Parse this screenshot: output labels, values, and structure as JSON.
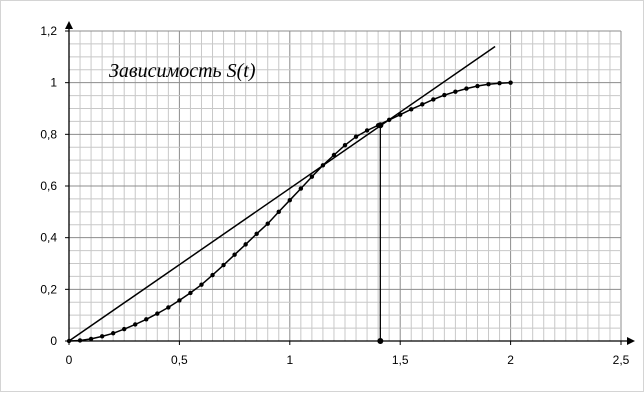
{
  "chart_data": {
    "type": "line",
    "title": "Зависимость S(t)",
    "xlabel": "",
    "ylabel": "",
    "xlim": [
      0,
      2.5
    ],
    "ylim": [
      0,
      1.2
    ],
    "grid": true,
    "x_ticks": [
      0,
      0.5,
      1,
      1.5,
      2,
      2.5
    ],
    "x_tick_labels": [
      "0",
      "0,5",
      "1",
      "1,5",
      "2",
      "2,5"
    ],
    "y_ticks": [
      0,
      0.2,
      0.4,
      0.6,
      0.8,
      1,
      1.2
    ],
    "y_tick_labels": [
      "0",
      "0,2",
      "0,4",
      "0,6",
      "0,8",
      "1",
      "1,2"
    ],
    "series": [
      {
        "type": "line-with-markers",
        "color": "#000000",
        "x": [
          0,
          0.05,
          0.1,
          0.15,
          0.2,
          0.25,
          0.3,
          0.35,
          0.4,
          0.45,
          0.5,
          0.55,
          0.6,
          0.65,
          0.7,
          0.75,
          0.8,
          0.85,
          0.9,
          0.95,
          1,
          1.05,
          1.1,
          1.15,
          1.2,
          1.25,
          1.3,
          1.35,
          1.4,
          1.45,
          1.5,
          1.55,
          1.6,
          1.65,
          1.7,
          1.75,
          1.8,
          1.85,
          1.9,
          1.95,
          2
        ],
        "y": [
          0,
          0.002,
          0.008,
          0.018,
          0.03,
          0.046,
          0.064,
          0.084,
          0.106,
          0.13,
          0.157,
          0.186,
          0.218,
          0.255,
          0.294,
          0.334,
          0.374,
          0.415,
          0.454,
          0.5,
          0.545,
          0.59,
          0.636,
          0.68,
          0.72,
          0.758,
          0.791,
          0.815,
          0.835,
          0.856,
          0.876,
          0.897,
          0.916,
          0.935,
          0.952,
          0.965,
          0.977,
          0.987,
          0.994,
          0.998,
          1
        ]
      },
      {
        "type": "line",
        "color": "#000000",
        "x": [
          0,
          1.93
        ],
        "y": [
          0,
          1.14
        ]
      }
    ],
    "annotations": [
      {
        "type": "vertical-drop",
        "x": 1.41,
        "y": 0.835,
        "color": "#000000"
      }
    ]
  }
}
